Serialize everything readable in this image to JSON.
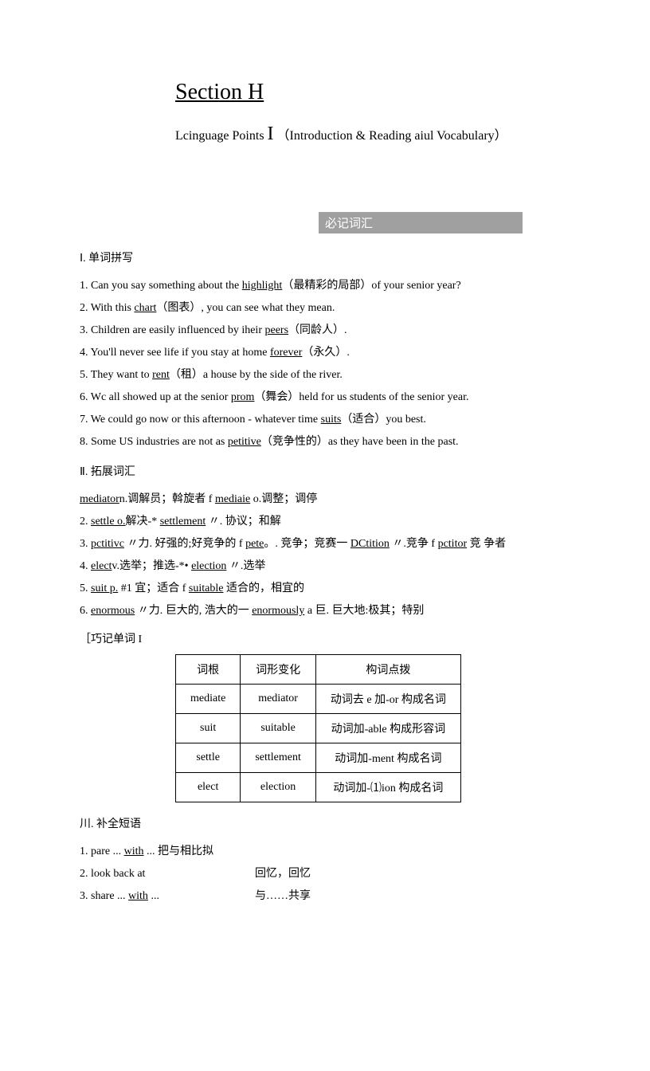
{
  "title": "Section H",
  "subtitle_prefix": "Lcinguage Points ",
  "subtitle_roman": "I",
  "subtitle_suffix": " （Introduction & Reading aiul Vocabulary）",
  "banner": "必记词汇",
  "heading1": "Ⅰ. 单词拼写",
  "items1": [
    {
      "n": "1.",
      "pre": "Can you say something about the ",
      "u": "highlight",
      "post": "（最精彩的局部）of your senior year?"
    },
    {
      "n": "2.",
      "pre": " With this ",
      "u": "chart",
      "post": "（图表）, you can see what they mean."
    },
    {
      "n": "3.",
      "pre": " Children are easily influenced by iheir ",
      "u": "peers",
      "post": "（同龄人）."
    },
    {
      "n": "4.",
      "pre": " You'll never see life if you stay at home ",
      "u": "forever",
      "post": "（永久）."
    },
    {
      "n": "5.",
      "pre": " They want to ",
      "u": "rent",
      "post": "（租）a house by the side of the river."
    },
    {
      "n": "6.",
      "pre": " Wc all showed up at the senior ",
      "u": "prom",
      "post": "（舞会）held for us students of the senior year."
    },
    {
      "n": "7.",
      "pre": " We could go now or this afternoon - whatever time ",
      "u": "suits",
      "post": "（适合）you best."
    },
    {
      "n": "8.",
      "pre": " Some US industries are not as ",
      "u": "petitive",
      "post": "（竞争性的）as they have been in the past."
    }
  ],
  "heading2": "Ⅱ. 拓展词汇",
  "ext_line1": {
    "u1": "mediator",
    "mid": "n.调解员；斡旋者 f ",
    "u2": "mediaie",
    "post": " o.调整；调停"
  },
  "items2": [
    {
      "n": "2.",
      "segs": [
        {
          "u": "settle o."
        },
        {
          "t": "解决-* "
        },
        {
          "u": "settlement"
        },
        {
          "t": " 〃. 协议；和解"
        }
      ]
    },
    {
      "n": "3.",
      "segs": [
        {
          "u": "pctitivc"
        },
        {
          "t": " 〃力. 好强的;好竞争的 f "
        },
        {
          "u": "pete"
        },
        {
          "t": "。. 竞争；竞赛一 "
        },
        {
          "u": "DCtition"
        },
        {
          "t": " 〃.竞争 f "
        },
        {
          "u": "pctitor"
        },
        {
          "t": " 竞 争者"
        }
      ]
    },
    {
      "n": "4.",
      "segs": [
        {
          "u": "elect"
        },
        {
          "t": "v.选举；推选-*• "
        },
        {
          "u": "election"
        },
        {
          "t": " 〃.选举"
        }
      ]
    },
    {
      "n": "5.",
      "segs": [
        {
          "u": "suit p."
        },
        {
          "t": " #1 宜；适合 f "
        },
        {
          "u": "suitable"
        },
        {
          "t": " 适合的，相宜的"
        }
      ]
    },
    {
      "n": "6.",
      "segs": [
        {
          "u": "enormous"
        },
        {
          "t": " 〃力. 巨大的, 浩大的一 "
        },
        {
          "u": "enormously"
        },
        {
          "t": " a 巨. 巨大地:极其；特别"
        }
      ]
    }
  ],
  "note": "［巧记单词 I",
  "table": {
    "header": [
      "词根",
      "词形变化",
      "构词点拨"
    ],
    "rows": [
      [
        "mediate",
        "mediator",
        "动词去 e 加-or 构成名词"
      ],
      [
        "suit",
        "suitable",
        "动词加-able 构成形容词"
      ],
      [
        "settle",
        "settlement",
        "动词加-ment 构成名词"
      ],
      [
        "elect",
        "election",
        "动词加-⑴ion 构成名词"
      ]
    ]
  },
  "heading3": "川. 补全短语",
  "phrases": [
    {
      "n": "1.",
      "left_pre": "pare ... ",
      "left_u": "with",
      "left_post": " ... 把与相比拟",
      "right": ""
    },
    {
      "n": "2.",
      "left_pre": "look back at",
      "left_u": "",
      "left_post": "",
      "right": "回忆，回忆"
    },
    {
      "n": "3.",
      "left_pre": "share ... ",
      "left_u": "with",
      "left_post": " ...",
      "right": "与……共享"
    }
  ]
}
